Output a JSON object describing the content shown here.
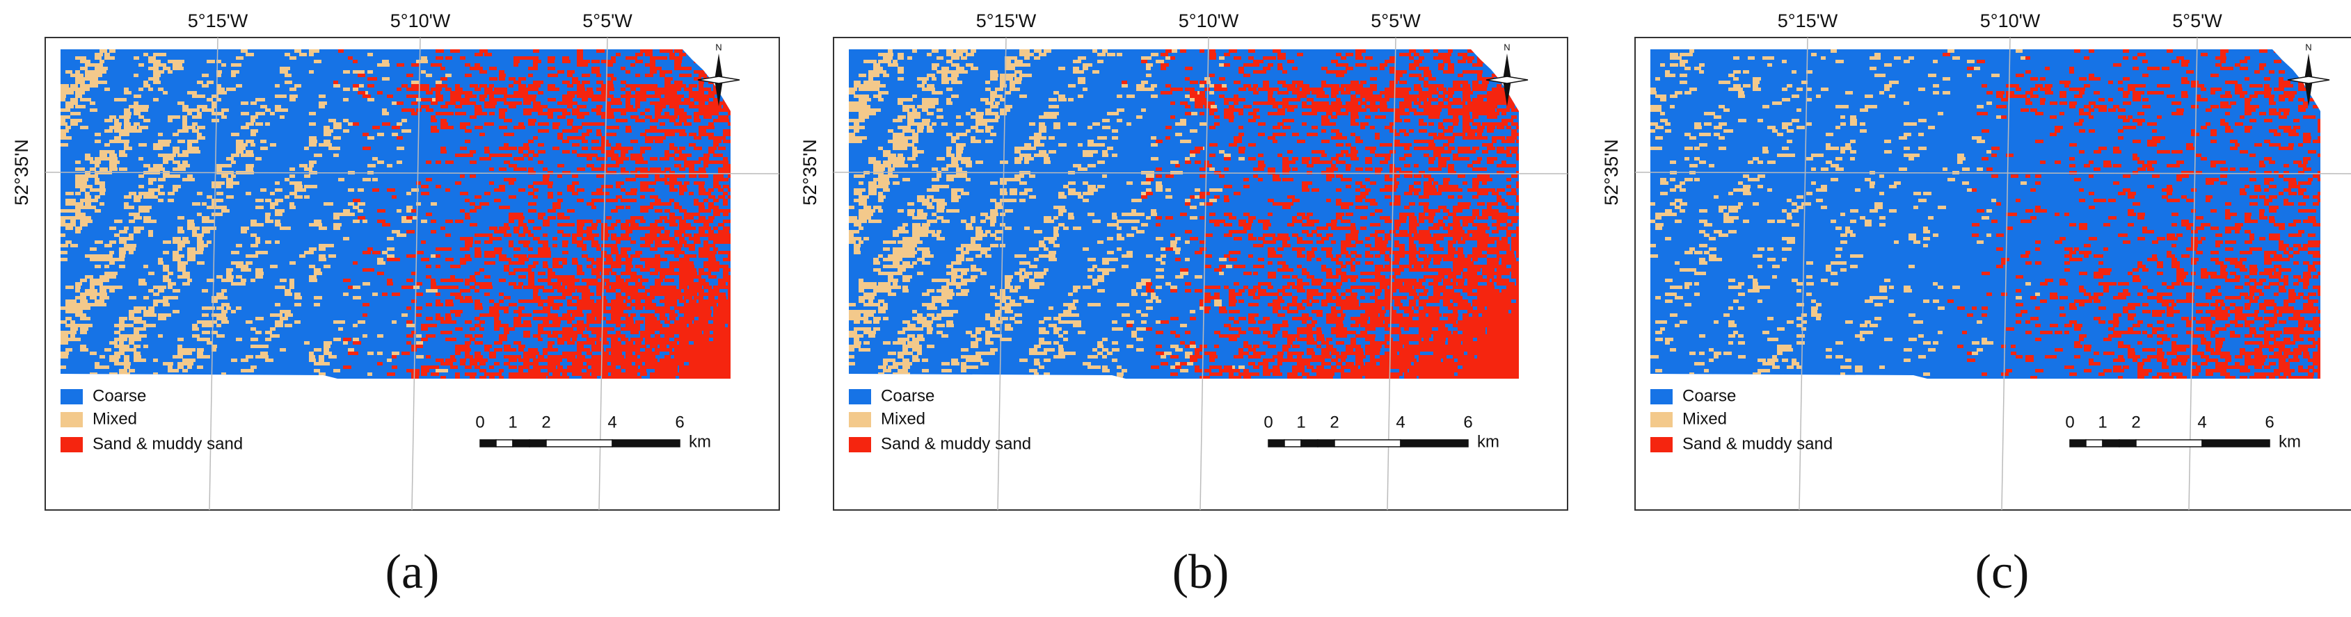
{
  "panels": [
    {
      "caption": "(a)",
      "lon_labels": [
        "5°15'W",
        "5°10'W",
        "5°5'W"
      ],
      "lat_label": "52°35'N",
      "north": "N",
      "legend": [
        "Coarse",
        "Mixed",
        "Sand & muddy sand"
      ],
      "scale_labels": [
        "0",
        "1",
        "2",
        "4",
        "6"
      ],
      "scale_unit": "km"
    },
    {
      "caption": "(b)",
      "lon_labels": [
        "5°15'W",
        "5°10'W",
        "5°5'W"
      ],
      "lat_label": "52°35'N",
      "north": "N",
      "legend": [
        "Coarse",
        "Mixed",
        "Sand & muddy sand"
      ],
      "scale_labels": [
        "0",
        "1",
        "2",
        "4",
        "6"
      ],
      "scale_unit": "km"
    },
    {
      "caption": "(c)",
      "lon_labels": [
        "5°15'W",
        "5°10'W",
        "5°5'W"
      ],
      "lat_label": "52°35'N",
      "north": "N",
      "legend": [
        "Coarse",
        "Mixed",
        "Sand & muddy sand"
      ],
      "scale_labels": [
        "0",
        "1",
        "2",
        "4",
        "6"
      ],
      "scale_unit": "km"
    }
  ]
}
